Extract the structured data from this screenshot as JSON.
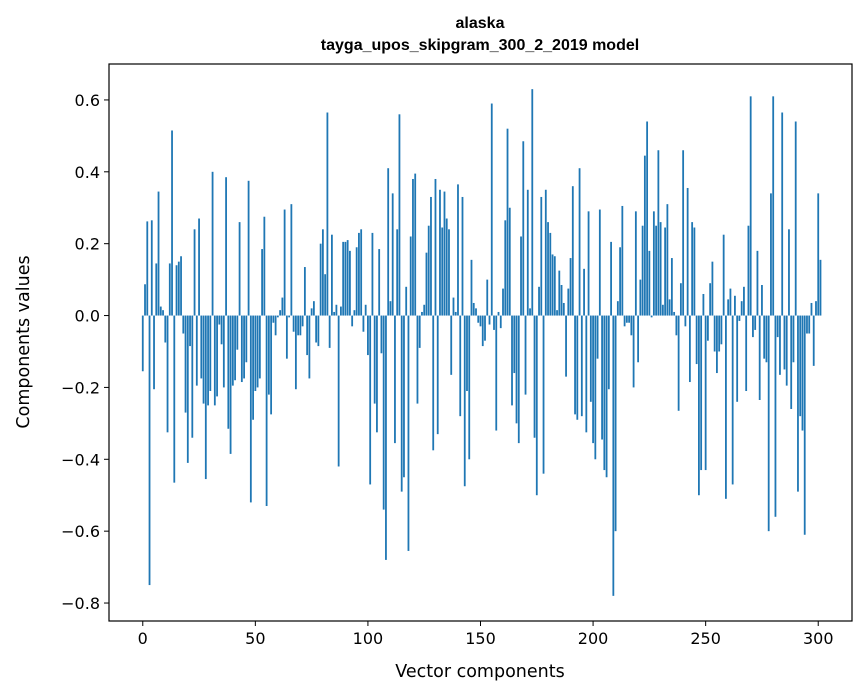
{
  "chart_data": {
    "type": "bar",
    "title": "alaska",
    "subtitle": "tayga_upos_skipgram_300_2_2019 model",
    "xlabel": "Vector components",
    "ylabel": "Components values",
    "xlim": [
      -15,
      315
    ],
    "ylim": [
      -0.85,
      0.7
    ],
    "xticks": [
      0,
      50,
      100,
      150,
      200,
      250,
      300
    ],
    "xtick_labels": [
      "0",
      "50",
      "100",
      "150",
      "200",
      "250",
      "300"
    ],
    "yticks": [
      -0.8,
      -0.6,
      -0.4,
      -0.2,
      0.0,
      0.2,
      0.4,
      0.6
    ],
    "ytick_labels": [
      "−0.8",
      "−0.6",
      "−0.4",
      "−0.2",
      "0.0",
      "0.2",
      "0.4",
      "0.6"
    ],
    "bar_color": "#1f77b4",
    "grid": false,
    "x": "indices 0..299",
    "values": [
      -0.155,
      0.087,
      0.262,
      -0.75,
      0.265,
      -0.205,
      0.145,
      0.345,
      0.025,
      0.015,
      -0.075,
      -0.325,
      0.145,
      0.515,
      -0.465,
      0.14,
      0.15,
      0.165,
      -0.05,
      -0.27,
      -0.41,
      -0.085,
      -0.34,
      0.24,
      -0.195,
      0.27,
      -0.175,
      -0.245,
      -0.455,
      -0.25,
      -0.21,
      0.4,
      -0.25,
      -0.225,
      -0.025,
      -0.08,
      -0.2,
      0.385,
      -0.315,
      -0.385,
      -0.195,
      -0.18,
      -0.095,
      0.26,
      -0.185,
      -0.175,
      -0.13,
      0.375,
      -0.52,
      -0.29,
      -0.21,
      -0.2,
      -0.175,
      0.185,
      0.275,
      -0.53,
      -0.22,
      -0.275,
      -0.02,
      -0.055,
      -0.005,
      0.015,
      0.05,
      0.295,
      -0.12,
      -0.005,
      0.31,
      -0.045,
      -0.205,
      -0.055,
      -0.055,
      -0.03,
      0.135,
      -0.11,
      -0.175,
      0.02,
      0.04,
      -0.075,
      -0.085,
      0.2,
      0.24,
      0.115,
      0.565,
      -0.09,
      0.225,
      0.01,
      0.03,
      -0.42,
      0.025,
      0.205,
      0.205,
      0.21,
      0.18,
      -0.03,
      0.015,
      0.19,
      0.23,
      0.24,
      -0.045,
      0.03,
      -0.11,
      -0.47,
      0.23,
      -0.245,
      -0.325,
      0.185,
      -0.105,
      -0.54,
      -0.68,
      0.41,
      0.04,
      0.34,
      -0.355,
      0.24,
      0.56,
      -0.49,
      -0.45,
      0.08,
      -0.655,
      0.22,
      0.38,
      0.395,
      -0.245,
      -0.09,
      0.01,
      0.03,
      0.175,
      0.25,
      0.33,
      -0.375,
      0.38,
      -0.33,
      0.35,
      0.245,
      0.345,
      0.27,
      0.24,
      -0.165,
      0.05,
      0.01,
      0.365,
      -0.28,
      0.33,
      -0.475,
      -0.21,
      -0.4,
      0.155,
      0.035,
      0.02,
      -0.02,
      -0.03,
      -0.085,
      -0.07,
      0.1,
      -0.025,
      0.59,
      -0.04,
      -0.32,
      0.01,
      -0.035,
      0.075,
      0.265,
      0.52,
      0.3,
      -0.25,
      -0.16,
      -0.3,
      -0.355,
      0.22,
      0.485,
      -0.22,
      0.35,
      0.02,
      0.63,
      -0.34,
      -0.5,
      0.08,
      0.33,
      -0.44,
      0.35,
      0.26,
      0.23,
      0.17,
      0.165,
      0.015,
      0.125,
      0.085,
      0.035,
      -0.17,
      0.075,
      0.16,
      0.36,
      -0.275,
      -0.29,
      0.41,
      -0.28,
      0.13,
      -0.325,
      0.29,
      -0.24,
      -0.355,
      -0.4,
      -0.12,
      0.295,
      -0.345,
      -0.43,
      -0.45,
      -0.205,
      0.205,
      -0.78,
      -0.6,
      0.04,
      0.19,
      0.305,
      -0.03,
      -0.02,
      -0.02,
      -0.055,
      -0.2,
      0.29,
      -0.13,
      0.1,
      0.25,
      0.445,
      0.54,
      0.18,
      -0.005,
      0.29,
      0.25,
      0.46,
      0.26,
      0.03,
      0.245,
      0.31,
      0.045,
      0.16,
      0.01,
      -0.055,
      -0.265,
      0.09,
      0.46,
      -0.03,
      0.355,
      -0.185,
      0.26,
      0.245,
      -0.135,
      -0.5,
      -0.43,
      0.06,
      -0.43,
      -0.07,
      0.09,
      0.15,
      -0.1,
      -0.16,
      -0.1,
      -0.08,
      0.225,
      -0.51,
      0.045,
      0.075,
      -0.47,
      0.055,
      -0.24,
      -0.015,
      0.04,
      0.08,
      -0.21,
      0.25,
      0.61,
      -0.06,
      -0.04,
      0.18,
      -0.235,
      0.085,
      -0.12,
      -0.13,
      -0.6,
      0.34,
      0.61,
      -0.56,
      -0.06,
      -0.165,
      0.565,
      -0.15,
      -0.195,
      0.24,
      -0.26,
      -0.13,
      0.54,
      -0.49,
      -0.28,
      -0.32,
      -0.61,
      -0.05,
      -0.05,
      0.035,
      -0.14,
      0.04,
      0.34,
      0.155
    ]
  }
}
